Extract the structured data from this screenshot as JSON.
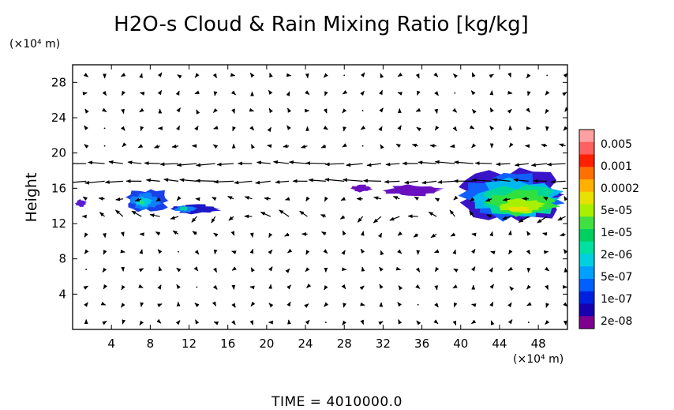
{
  "chart_data": {
    "type": "heatmap",
    "title": "H2O-s Cloud & Rain Mixing Ratio [kg/kg]",
    "x_unit_label": "(×10⁴ m)",
    "y_unit_label": "(×10⁴ m)",
    "ylabel": "Height",
    "xlabel": "",
    "xlim": [
      0,
      51
    ],
    "ylim": [
      0,
      30
    ],
    "x_ticks": [
      4,
      8,
      12,
      16,
      20,
      24,
      28,
      32,
      36,
      40,
      44,
      48
    ],
    "y_ticks": [
      4,
      8,
      12,
      16,
      20,
      24,
      28
    ],
    "time_label": "TIME = 4010000.0",
    "colorbar": {
      "labels": [
        "0.005",
        "0.001",
        "0.0002",
        "5e-05",
        "1e-05",
        "2e-06",
        "5e-07",
        "1e-07",
        "2e-08"
      ],
      "colors": [
        "#ffa0a0",
        "#ff6060",
        "#ff2000",
        "#ff7000",
        "#ffb000",
        "#e8e000",
        "#a8f000",
        "#40e040",
        "#00d060",
        "#00e0a0",
        "#00d0e0",
        "#00a0ff",
        "#0060ff",
        "#0020e0",
        "#1800b0",
        "#800090"
      ]
    },
    "cloud_regions": [
      {
        "x": [
          0.2,
          1.5
        ],
        "y": [
          13.8,
          14.8
        ],
        "level": "2e-08 to 1e-07"
      },
      {
        "x": [
          5.0,
          10.5
        ],
        "y": [
          13.0,
          16.2
        ],
        "level": "1e-07 to 2e-06"
      },
      {
        "x": [
          9.7,
          15.5
        ],
        "y": [
          13.0,
          14.3
        ],
        "level": "2e-08 to 2e-06"
      },
      {
        "x": [
          28.5,
          31.0
        ],
        "y": [
          15.5,
          16.5
        ],
        "level": "2e-08"
      },
      {
        "x": [
          31.5,
          38.5
        ],
        "y": [
          15.0,
          16.5
        ],
        "level": "2e-08"
      },
      {
        "x": [
          38.5,
          51.0
        ],
        "y": [
          11.5,
          19.0
        ],
        "level": "5e-07 to 5e-05"
      }
    ],
    "wind_field": "velocity vectors on regular grid; strongest westward flow between heights 16 and 20"
  }
}
